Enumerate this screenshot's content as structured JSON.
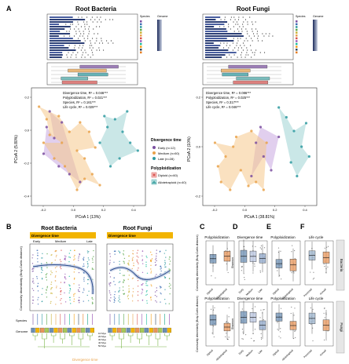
{
  "panels": {
    "A": "A",
    "B": "B",
    "C": "C",
    "D": "D",
    "E": "E",
    "F": "F"
  },
  "colors": {
    "early": "#7b4fa0",
    "medium": "#e9a24a",
    "late": "#2e9aa0",
    "diploid": "#d9534f",
    "allotetraploid": "#4aa8a8",
    "trend": "#2b4b8c",
    "box_diploid": "#6c8fb3",
    "box_allo": "#e8955a",
    "dark": "#1b2a5a"
  },
  "panel_a": {
    "bacteria": {
      "title": "Root Bacteria",
      "stats": [
        "Divergence time, R² = 0.046***",
        "Polyploidization, R² = 0.021***",
        "Species, R² = 0.161***",
        "Life cycle, R² = 0.029***"
      ],
      "xlabel": "PCoA 1 (13%)",
      "ylabel": "PCoA 2 (5.80%)",
      "xticks": [
        "-0.2",
        "0.0",
        "0.2",
        "0.4"
      ],
      "yticks": [
        "0.2",
        "0.0",
        "-0.2",
        "-0.4"
      ],
      "legend_species": "Species",
      "legend_genome": "Genome",
      "legend_lifecycle": [
        "Early",
        "Medium",
        "Late"
      ],
      "legend_ploidy": [
        "Allotetraploid",
        "Diploid"
      ]
    },
    "fungi": {
      "title": "Root Fungi",
      "stats": [
        "Divergence time, R² = 0.086***",
        "Polyploidization, R² = 0.025***",
        "Species, R² = 0.317***",
        "Life cycle, R² = 0.046***"
      ],
      "xlabel": "PCoA 1 (38.81%)",
      "ylabel": "PCoA 2 (10%)",
      "xticks": [
        "-0.2",
        "0.0",
        "0.2",
        "0.4"
      ],
      "yticks": [
        "0.2",
        "0.0",
        "-0.2"
      ],
      "legend_species": "Species",
      "legend_genome": "Genome"
    },
    "legend": {
      "divergence_title": "Divergence time",
      "divergence_items": [
        "Early (n=12)",
        "Medium (n=60)",
        "Late (n=28)"
      ],
      "ploidy_title": "Polyploidization",
      "ploidy_items": [
        "Diploid (n=60)",
        "Allotetraploid (n=40)"
      ]
    }
  },
  "panel_b": {
    "bacteria_title": "Root Bacteria",
    "fungi_title": "Root Fungi",
    "divergence_label": "Divergence time",
    "phase_labels": [
      "Early",
      "Medium",
      "Late"
    ],
    "ylabel": "Community dissimilarity (Bray-Curtis distance)",
    "species_label": "Species",
    "genome_label": "Genome",
    "time_label": "Divergence time",
    "tree_ticks": [
      "10 Mya",
      "20 Mya",
      "30 Mya",
      "40 Mya",
      "50 Mya"
    ]
  },
  "panel_c": {
    "title": "Polyploidization",
    "ylabel": "Community dissimilarity (Bray-Curtis distance)",
    "xt": [
      "Diploid",
      "Allotetraploid"
    ]
  },
  "panel_d": {
    "title": "Divergence time",
    "ylabel": "Shannon",
    "xt": [
      "Early",
      "Medium",
      "Late"
    ]
  },
  "panel_e": {
    "title": "Polyploidization",
    "xt": [
      "Diploid",
      "Allotetraploid"
    ]
  },
  "panel_f": {
    "title": "Life cycle",
    "xt": [
      "Perennial",
      "Annual"
    ]
  },
  "strip_labels": [
    "Bacteria",
    "Fungi"
  ],
  "chart_data": [
    {
      "type": "scatter",
      "title": "Root Bacteria",
      "xlabel": "PCoA 1 (13%)",
      "ylabel": "PCoA 2 (5.80%)",
      "xlim": [
        -0.3,
        0.45
      ],
      "ylim": [
        -0.45,
        0.3
      ],
      "series": [
        {
          "name": "Early (n=12)",
          "points": [
            [
              -0.18,
              0.15
            ],
            [
              -0.2,
              0.05
            ],
            [
              -0.15,
              -0.02
            ],
            [
              -0.22,
              -0.12
            ],
            [
              -0.1,
              0.08
            ],
            [
              -0.12,
              -0.2
            ],
            [
              -0.05,
              -0.25
            ],
            [
              0.02,
              -0.3
            ]
          ]
        },
        {
          "name": "Medium (n=60)",
          "points": [
            [
              -0.25,
              0.18
            ],
            [
              -0.2,
              0.1
            ],
            [
              -0.18,
              0.0
            ],
            [
              -0.1,
              -0.05
            ],
            [
              -0.05,
              0.02
            ],
            [
              0.0,
              -0.1
            ],
            [
              0.05,
              -0.15
            ],
            [
              0.1,
              -0.25
            ],
            [
              0.15,
              -0.32
            ],
            [
              -0.15,
              -0.15
            ],
            [
              -0.08,
              -0.2
            ],
            [
              0.0,
              -0.35
            ],
            [
              0.05,
              -0.28
            ],
            [
              -0.22,
              -0.05
            ],
            [
              -0.12,
              0.12
            ],
            [
              0.02,
              0.08
            ],
            [
              0.08,
              0.02
            ],
            [
              0.12,
              -0.08
            ]
          ]
        },
        {
          "name": "Late (n=28)",
          "points": [
            [
              0.2,
              0.05
            ],
            [
              0.25,
              0.1
            ],
            [
              0.3,
              0.02
            ],
            [
              0.35,
              -0.05
            ],
            [
              0.28,
              -0.15
            ],
            [
              0.22,
              -0.2
            ],
            [
              0.18,
              0.12
            ],
            [
              0.4,
              -0.1
            ],
            [
              0.33,
              0.15
            ],
            [
              0.15,
              -0.05
            ]
          ]
        }
      ]
    },
    {
      "type": "scatter",
      "title": "Root Fungi",
      "xlabel": "PCoA 1 (38.81%)",
      "ylabel": "PCoA 2 (10%)",
      "xlim": [
        -0.3,
        0.45
      ],
      "ylim": [
        -0.3,
        0.3
      ],
      "series": [
        {
          "name": "Early (n=12)",
          "points": [
            [
              0.05,
              0.02
            ],
            [
              0.1,
              -0.05
            ],
            [
              0.15,
              -0.12
            ],
            [
              0.2,
              0.05
            ],
            [
              0.02,
              -0.15
            ],
            [
              0.08,
              0.1
            ]
          ]
        },
        {
          "name": "Medium (n=60)",
          "points": [
            [
              -0.2,
              -0.1
            ],
            [
              -0.15,
              -0.05
            ],
            [
              -0.1,
              0.0
            ],
            [
              -0.05,
              -0.12
            ],
            [
              0.0,
              -0.2
            ],
            [
              0.05,
              -0.18
            ],
            [
              -0.18,
              -0.18
            ],
            [
              -0.12,
              -0.22
            ],
            [
              0.1,
              -0.22
            ],
            [
              -0.08,
              0.05
            ],
            [
              0.02,
              0.08
            ],
            [
              0.12,
              0.02
            ],
            [
              -0.22,
              0.02
            ]
          ]
        },
        {
          "name": "Late (n=28)",
          "points": [
            [
              0.25,
              0.15
            ],
            [
              0.3,
              0.08
            ],
            [
              0.35,
              0.0
            ],
            [
              0.28,
              -0.08
            ],
            [
              0.38,
              0.12
            ],
            [
              0.32,
              -0.15
            ],
            [
              0.2,
              0.2
            ],
            [
              0.4,
              -0.05
            ]
          ]
        }
      ]
    }
  ]
}
